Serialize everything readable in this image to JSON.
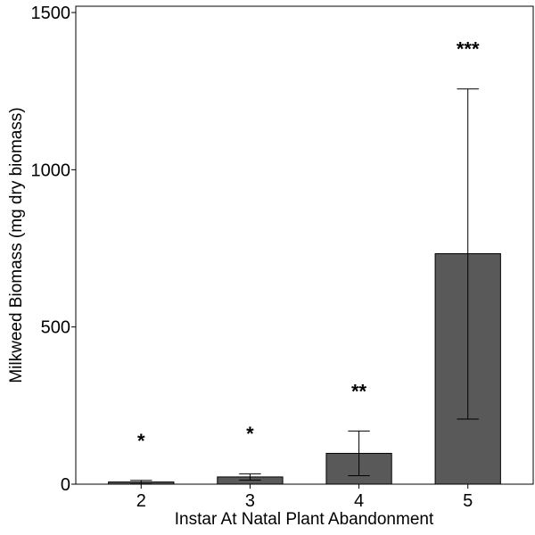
{
  "chart_data": {
    "type": "bar",
    "title": "",
    "xlabel": "Instar At Natal Plant Abandonment",
    "ylabel": "Milkweed Biomass (mg dry biomass)",
    "categories": [
      "2",
      "3",
      "4",
      "5"
    ],
    "values": [
      7,
      23,
      98,
      733
    ],
    "error_low": [
      1,
      13,
      27,
      207
    ],
    "error_high": [
      12,
      33,
      169,
      1257
    ],
    "annotations": [
      "*",
      "*",
      "**",
      "***"
    ],
    "annotation_y": [
      150,
      173,
      307,
      1397
    ],
    "ylim": [
      0,
      1520
    ],
    "yticks": [
      0,
      500,
      1000,
      1500
    ],
    "grid": false,
    "bar_color": "#595959",
    "background": "#ffffff"
  }
}
